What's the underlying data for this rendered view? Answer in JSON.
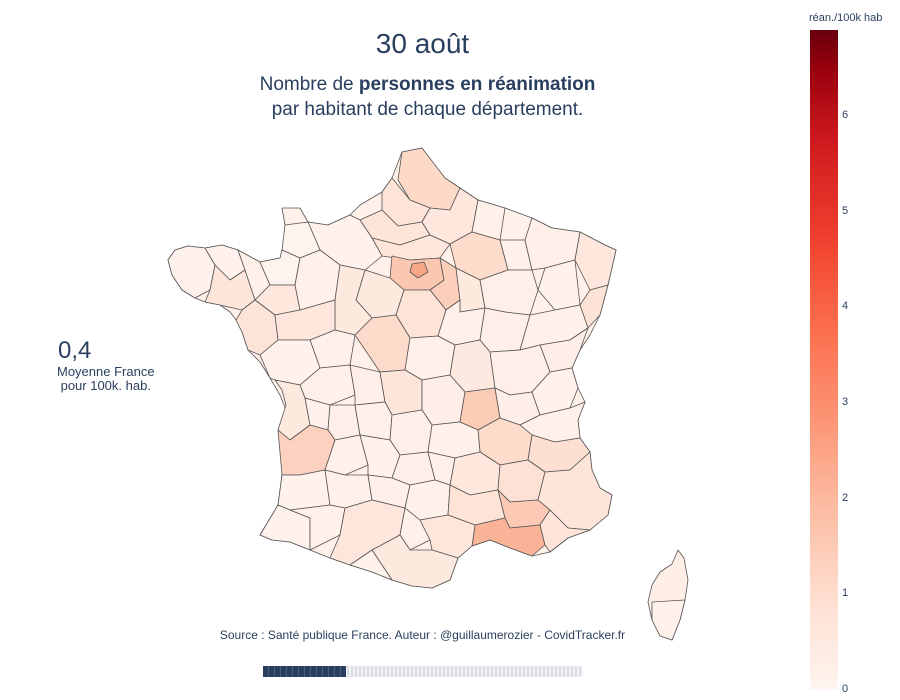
{
  "title": "30 août",
  "subtitle": {
    "part1": "Nombre de ",
    "bold": "personnes en réanimation",
    "line2": "par habitant de chaque département."
  },
  "average": {
    "value": "0,4",
    "label_line1": "Moyenne France",
    "label_line2": "pour 100k. hab."
  },
  "source": "Source : Santé publique France. Auteur : @guillaumerozier - CovidTracker.fr",
  "colorbar": {
    "title": "réan./100k hab",
    "ticks": [
      "0",
      "1",
      "2",
      "3",
      "4",
      "5",
      "6"
    ],
    "min": 0,
    "max": 6.9,
    "colorscale": "Reds"
  },
  "animation_progress": 0.26,
  "colors": {
    "text": "#2a3f5f",
    "border": "#555555"
  }
}
